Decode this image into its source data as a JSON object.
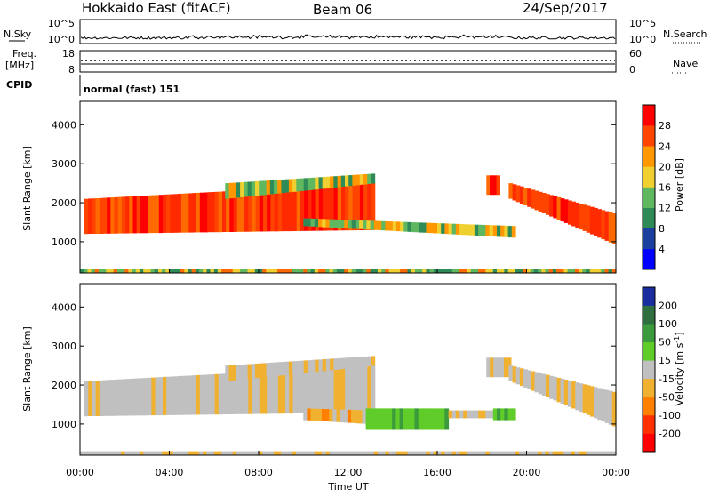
{
  "header": {
    "title": "Hokkaido East (fitACF)",
    "beam": "Beam 06",
    "date": "24/Sep/2017"
  },
  "strips": {
    "nsky_label": "N.Sky",
    "nsky_ticks": [
      "10^5",
      "10^0"
    ],
    "nsearch_label": "N.Search",
    "nsearch_ticks": [
      "10^5",
      "10^0"
    ],
    "freq_label": "Freq.",
    "freq_unit": "[MHz]",
    "freq_ticks": [
      "18",
      "8"
    ],
    "nave_label": "Nave",
    "nave_ticks": [
      "60",
      "0"
    ],
    "cpid_label": "CPID",
    "cpid_value": "normal (fast) 151"
  },
  "chart_data": [
    {
      "type": "heatmap",
      "name": "power",
      "ylabel": "Slant Range [km]",
      "yticks": [
        1000,
        2000,
        3000,
        4000
      ],
      "ylim": [
        200,
        4600
      ],
      "xticks": [
        "00:00",
        "04:00",
        "08:00",
        "12:00",
        "16:00",
        "20:00",
        "00:00"
      ],
      "xlim_hours": [
        0,
        24
      ],
      "colorbar": {
        "label": "Power [dB]",
        "ticks": [
          "4",
          "8",
          "12",
          "16",
          "20",
          "24",
          "28"
        ],
        "colors": [
          "#0000ff",
          "#1a3f9f",
          "#2e8b57",
          "#5fb85f",
          "#f0d030",
          "#ff9800",
          "#ff4400",
          "#ff0000"
        ]
      },
      "regions": [
        {
          "t": [
            0.2,
            13.2
          ],
          "range_start": [
            1200,
            2100
          ],
          "range_end": [
            1300,
            2500
          ],
          "level": "high"
        },
        {
          "t": [
            6.5,
            13.2
          ],
          "range_start": [
            2100,
            2500
          ],
          "range_end": [
            2500,
            2750
          ],
          "level": "medium"
        },
        {
          "t": [
            10.0,
            19.5
          ],
          "range_start": [
            1400,
            1600
          ],
          "range_end": [
            1100,
            1400
          ],
          "level": "medium"
        },
        {
          "t": [
            18.2,
            18.8
          ],
          "range_start": [
            2200,
            2700
          ],
          "range_end": [
            2200,
            2700
          ],
          "level": "high"
        },
        {
          "t": [
            19.2,
            24.0
          ],
          "range_start": [
            2100,
            2500
          ],
          "range_end": [
            900,
            1700
          ],
          "level": "high"
        },
        {
          "t": [
            0.0,
            24.0
          ],
          "range_start": [
            200,
            300
          ],
          "range_end": [
            200,
            300
          ],
          "level": "low"
        }
      ]
    },
    {
      "type": "heatmap",
      "name": "velocity",
      "ylabel": "Slant Range [km]",
      "yticks": [
        1000,
        2000,
        3000,
        4000
      ],
      "ylim": [
        200,
        4600
      ],
      "xticks": [
        "00:00",
        "04:00",
        "08:00",
        "12:00",
        "16:00",
        "20:00",
        "00:00"
      ],
      "xlim_hours": [
        0,
        24
      ],
      "xlabel": "Time UT",
      "colorbar": {
        "label": "Velocity [m s",
        "label_sup": "-1",
        "label_close": "]",
        "ticks": [
          "200",
          "100",
          "50",
          "15",
          "-15",
          "-50",
          "-100",
          "-200"
        ],
        "colors": [
          "#1a2d9e",
          "#2f6e3f",
          "#3b9a3b",
          "#60cc2a",
          "#c0c0c0",
          "#f0b030",
          "#ff8000",
          "#ff3000",
          "#ff0000"
        ]
      },
      "regions": [
        {
          "t": [
            0.2,
            13.2
          ],
          "range_start": [
            1200,
            2100
          ],
          "range_end": [
            1300,
            2500
          ],
          "level": "ground"
        },
        {
          "t": [
            6.5,
            13.2
          ],
          "range_start": [
            2100,
            2500
          ],
          "range_end": [
            2500,
            2750
          ],
          "level": "ground"
        },
        {
          "t": [
            10.0,
            12.8
          ],
          "range_start": [
            1100,
            1400
          ],
          "range_end": [
            1000,
            1350
          ],
          "level": "away"
        },
        {
          "t": [
            12.8,
            16.5
          ],
          "range_start": [
            850,
            1400
          ],
          "range_end": [
            850,
            1400
          ],
          "level": "toward"
        },
        {
          "t": [
            16.5,
            18.5
          ],
          "range_start": [
            1150,
            1350
          ],
          "range_end": [
            1150,
            1350
          ],
          "level": "ground"
        },
        {
          "t": [
            18.5,
            19.5
          ],
          "range_start": [
            1100,
            1400
          ],
          "range_end": [
            1100,
            1400
          ],
          "level": "toward"
        },
        {
          "t": [
            18.2,
            19.3
          ],
          "range_start": [
            2200,
            2700
          ],
          "range_end": [
            2200,
            2700
          ],
          "level": "ground"
        },
        {
          "t": [
            19.2,
            24.0
          ],
          "range_start": [
            2100,
            2500
          ],
          "range_end": [
            900,
            1800
          ],
          "level": "ground"
        },
        {
          "t": [
            0.0,
            24.0
          ],
          "range_start": [
            200,
            300
          ],
          "range_end": [
            200,
            300
          ],
          "level": "ground"
        }
      ]
    }
  ]
}
